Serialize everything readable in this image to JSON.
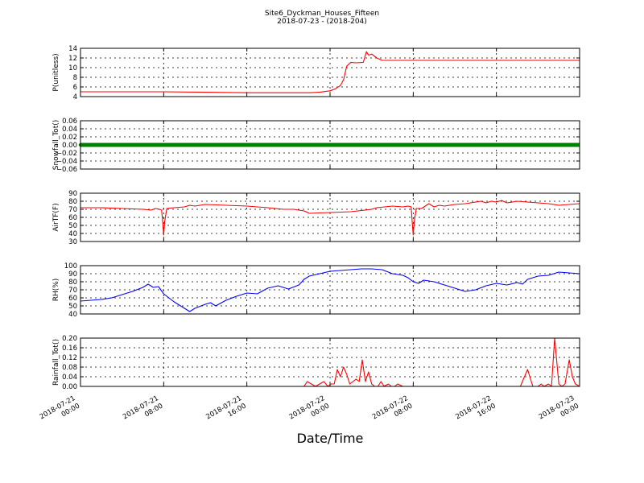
{
  "figure": {
    "title_line1": "Site6_Dyckman_Houses_Fifteen",
    "title_line2": "2018-07-23 - (2018-204)",
    "xlabel": "Date/Time"
  },
  "chart_data": [
    {
      "type": "line",
      "ylabel": "P(unitless)",
      "ylim": [
        4,
        14
      ],
      "yticks": [
        "4",
        "6",
        "8",
        "10",
        "12",
        "14"
      ],
      "grid": true,
      "xlim": [
        0,
        48
      ],
      "x_ticks": [
        {
          "value": 0,
          "line1": "2018-07-21",
          "line2": "00:00"
        },
        {
          "value": 8,
          "line1": "2018-07-21",
          "line2": "08:00"
        },
        {
          "value": 16,
          "line1": "2018-07-21",
          "line2": "16:00"
        },
        {
          "value": 24,
          "line1": "2018-07-22",
          "line2": "00:00"
        },
        {
          "value": 32,
          "line1": "2018-07-22",
          "line2": "08:00"
        },
        {
          "value": 40,
          "line1": "2018-07-22",
          "line2": "16:00"
        },
        {
          "value": 48,
          "line1": "2018-07-23",
          "line2": "00:00"
        }
      ],
      "series": [
        {
          "color": "#ff0000",
          "x": [
            0,
            4,
            8,
            12,
            16,
            20,
            22,
            23,
            24,
            24.5,
            25,
            25.3,
            25.6,
            26,
            26.5,
            27.2,
            27.5,
            27.7,
            28,
            28.5,
            29,
            32,
            36,
            40,
            44,
            48
          ],
          "y": [
            5,
            5,
            5,
            4.9,
            4.8,
            4.8,
            4.8,
            4.9,
            5.2,
            5.6,
            6.3,
            7.5,
            10.3,
            11.1,
            11,
            11.1,
            13.3,
            12.6,
            12.8,
            12,
            11.5,
            11.5,
            11.5,
            11.5,
            11.5,
            11.5
          ]
        }
      ]
    },
    {
      "type": "line",
      "ylabel": "Snowfall_Tot()",
      "ylim": [
        -0.06,
        0.06
      ],
      "yticks": [
        "−0.06",
        "−0.04",
        "−0.02",
        "0.00",
        "0.02",
        "0.04",
        "0.06"
      ],
      "grid": true,
      "xlim": [
        0,
        48
      ],
      "series": [
        {
          "color": "#008000",
          "style": "markers",
          "x": [
            0,
            48
          ],
          "y": [
            0,
            0
          ]
        }
      ]
    },
    {
      "type": "line",
      "ylabel": "AirTF(F)",
      "ylim": [
        30,
        90
      ],
      "yticks": [
        "30",
        "40",
        "50",
        "60",
        "70",
        "80",
        "90"
      ],
      "grid": true,
      "xlim": [
        0,
        48
      ],
      "series": [
        {
          "color": "#ff0000",
          "x": [
            0,
            2,
            4,
            6,
            6.8,
            7.2,
            7.6,
            7.8,
            7.9,
            8.0,
            8.1,
            8.3,
            9,
            10,
            10.5,
            11,
            12,
            14,
            16,
            18,
            19.5,
            20.5,
            21.5,
            22,
            24,
            26,
            28,
            28.5,
            30,
            31,
            31.5,
            31.8,
            31.9,
            32.0,
            32.1,
            32.3,
            32.8,
            33.5,
            34,
            34.5,
            35,
            36,
            37,
            38,
            38.5,
            39,
            39.5,
            40,
            40.5,
            41,
            42,
            43,
            44,
            45,
            46,
            47,
            48
          ],
          "y": [
            72,
            72,
            71,
            70,
            69,
            71,
            70,
            69,
            55,
            38,
            55,
            71,
            72,
            73,
            75,
            74,
            76,
            75,
            74,
            72,
            70,
            70,
            68,
            65,
            66,
            67,
            70,
            72,
            74,
            73,
            74,
            73,
            55,
            38,
            55,
            71,
            71,
            77,
            73,
            75,
            74,
            76,
            77,
            79,
            80,
            78,
            80,
            79,
            81,
            78,
            80,
            79,
            78,
            77,
            75,
            76,
            77
          ]
        }
      ]
    },
    {
      "type": "line",
      "ylabel": "RH(%)",
      "ylim": [
        40,
        100
      ],
      "yticks": [
        "40",
        "50",
        "60",
        "70",
        "80",
        "90",
        "100"
      ],
      "grid": true,
      "xlim": [
        0,
        48
      ],
      "series": [
        {
          "color": "#0000ff",
          "x": [
            0,
            1,
            2,
            3,
            4,
            5,
            6,
            6.5,
            7,
            7.5,
            8,
            9,
            10,
            10.5,
            11,
            12,
            12.5,
            13,
            14,
            15,
            16,
            17,
            18,
            19,
            20,
            21,
            21.5,
            22,
            23,
            24,
            25,
            26,
            27,
            28,
            29,
            30,
            31,
            31.5,
            32,
            32.5,
            33,
            34,
            35,
            36,
            37,
            38,
            39,
            40,
            41,
            42,
            42.5,
            43,
            44,
            45,
            46,
            47,
            48
          ],
          "y": [
            56,
            57,
            58,
            60,
            64,
            68,
            73,
            77,
            73,
            74,
            65,
            55,
            47,
            43,
            47,
            52,
            54,
            50,
            57,
            62,
            66,
            65,
            72,
            75,
            71,
            76,
            83,
            87,
            90,
            93,
            94,
            95,
            96,
            96,
            95,
            90,
            88,
            85,
            80,
            78,
            82,
            80,
            76,
            72,
            68,
            70,
            75,
            78,
            76,
            79,
            77,
            83,
            87,
            88,
            92,
            91,
            90
          ]
        }
      ]
    },
    {
      "type": "line",
      "ylabel": "Rainfall_Tot()",
      "ylim": [
        0,
        0.2
      ],
      "yticks": [
        "0.00",
        "0.04",
        "0.08",
        "0.12",
        "0.16",
        "0.20"
      ],
      "grid": true,
      "xlim": [
        0,
        48
      ],
      "series": [
        {
          "color": "#ff0000",
          "x": [
            0,
            21,
            21.5,
            21.8,
            22.2,
            22.6,
            23,
            23.4,
            23.8,
            24.1,
            24.4,
            24.7,
            25.0,
            25.3,
            25.6,
            25.9,
            26.2,
            26.5,
            26.8,
            27.1,
            27.4,
            27.7,
            28.0,
            28.3,
            28.6,
            28.9,
            29.2,
            29.6,
            29.9,
            30.2,
            30.5,
            31,
            42,
            42.3,
            42.7,
            43,
            43.5,
            44,
            44.3,
            44.6,
            45,
            45.3,
            45.6,
            46,
            46.3,
            46.6,
            47,
            47.3,
            47.6,
            48
          ],
          "y": [
            0,
            0,
            0,
            0.02,
            0.01,
            0,
            0.01,
            0.02,
            0,
            0.01,
            0.01,
            0.07,
            0.04,
            0.08,
            0.05,
            0.01,
            0.02,
            0.03,
            0.02,
            0.11,
            0.02,
            0.06,
            0.01,
            0,
            0,
            0.02,
            0,
            0.01,
            0,
            0,
            0.01,
            0,
            0,
            0,
            0.04,
            0.07,
            0,
            0,
            0.01,
            0,
            0.01,
            0,
            0.2,
            0.01,
            0,
            0.01,
            0.11,
            0.04,
            0.01,
            0
          ]
        }
      ]
    }
  ]
}
